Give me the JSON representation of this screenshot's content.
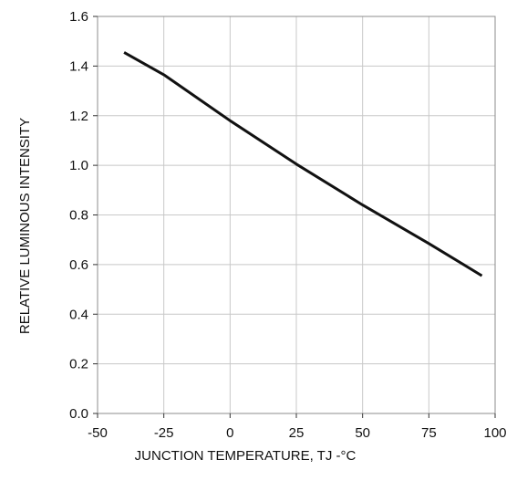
{
  "chart_data": {
    "type": "line",
    "title": "",
    "xlabel": "JUNCTION TEMPERATURE, TJ -°C",
    "ylabel": "RELATIVE LUMINOUS INTENSITY",
    "xlim": [
      -50,
      100
    ],
    "ylim": [
      0.0,
      1.6
    ],
    "x_ticks": [
      -50,
      -25,
      0,
      25,
      50,
      75,
      100
    ],
    "x_tick_labels": [
      "-50",
      "-25",
      "0",
      "25",
      "50",
      "75",
      "100"
    ],
    "y_ticks": [
      0.0,
      0.2,
      0.4,
      0.6,
      0.8,
      1.0,
      1.2,
      1.4,
      1.6
    ],
    "y_tick_labels": [
      "0.0",
      "0.2",
      "0.4",
      "0.6",
      "0.8",
      "1.0",
      "1.2",
      "1.4",
      "1.6"
    ],
    "grid": true,
    "series": [
      {
        "color": "#111111",
        "x": [
          -40,
          -25,
          0,
          25,
          50,
          75,
          95
        ],
        "y": [
          1.455,
          1.365,
          1.18,
          1.005,
          0.84,
          0.685,
          0.555
        ]
      }
    ]
  }
}
